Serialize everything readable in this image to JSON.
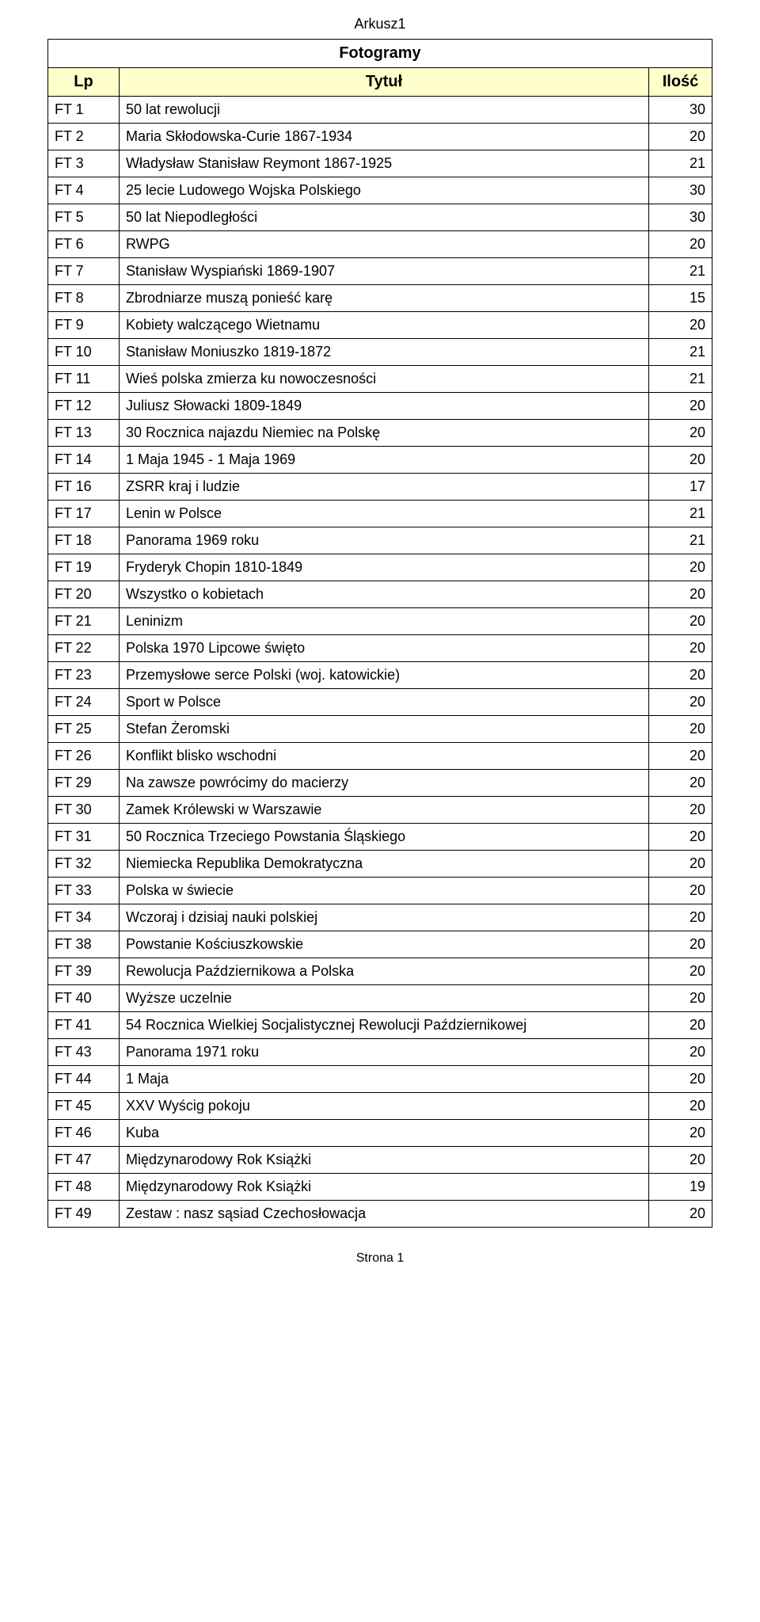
{
  "sheet_name": "Arkusz1",
  "section_title": "Fotogramy",
  "footer": "Strona 1",
  "columns": {
    "lp": "Lp",
    "title": "Tytuł",
    "qty": "Ilość"
  },
  "rows": [
    {
      "lp": "FT 1",
      "title": "50 lat rewolucji",
      "qty": "30"
    },
    {
      "lp": "FT 2",
      "title": "Maria Skłodowska-Curie 1867-1934",
      "qty": "20"
    },
    {
      "lp": "FT 3",
      "title": "Władysław Stanisław Reymont 1867-1925",
      "qty": "21"
    },
    {
      "lp": "FT 4",
      "title": "25 lecie Ludowego Wojska Polskiego",
      "qty": "30"
    },
    {
      "lp": "FT 5",
      "title": "50 lat Niepodległości",
      "qty": "30"
    },
    {
      "lp": "FT 6",
      "title": "RWPG",
      "qty": "20"
    },
    {
      "lp": "FT 7",
      "title": "Stanisław Wyspiański 1869-1907",
      "qty": "21"
    },
    {
      "lp": "FT 8",
      "title": "Zbrodniarze muszą ponieść karę",
      "qty": "15"
    },
    {
      "lp": "FT 9",
      "title": "Kobiety walczącego Wietnamu",
      "qty": "20"
    },
    {
      "lp": "FT 10",
      "title": "Stanisław Moniuszko 1819-1872",
      "qty": "21"
    },
    {
      "lp": "FT 11",
      "title": "Wieś polska zmierza ku nowoczesności",
      "qty": "21"
    },
    {
      "lp": "FT 12",
      "title": "Juliusz Słowacki 1809-1849",
      "qty": "20"
    },
    {
      "lp": "FT 13",
      "title": "30 Rocznica najazdu Niemiec na Polskę",
      "qty": "20"
    },
    {
      "lp": "FT 14",
      "title": "1 Maja 1945 - 1 Maja 1969",
      "qty": "20"
    },
    {
      "lp": "FT 16",
      "title": "ZSRR kraj i ludzie",
      "qty": "17"
    },
    {
      "lp": "FT 17",
      "title": "Lenin w Polsce",
      "qty": "21"
    },
    {
      "lp": "FT 18",
      "title": "Panorama 1969 roku",
      "qty": "21"
    },
    {
      "lp": "FT 19",
      "title": "Fryderyk Chopin 1810-1849",
      "qty": "20"
    },
    {
      "lp": "FT 20",
      "title": "Wszystko o kobietach",
      "qty": "20"
    },
    {
      "lp": "FT 21",
      "title": "Leninizm",
      "qty": "20"
    },
    {
      "lp": "FT 22",
      "title": "Polska 1970 Lipcowe święto",
      "qty": "20"
    },
    {
      "lp": "FT 23",
      "title": "Przemysłowe serce Polski (woj. katowickie)",
      "qty": "20"
    },
    {
      "lp": "FT 24",
      "title": "Sport w Polsce",
      "qty": "20"
    },
    {
      "lp": "FT 25",
      "title": "Stefan Żeromski",
      "qty": "20"
    },
    {
      "lp": "FT 26",
      "title": "Konflikt blisko wschodni",
      "qty": "20"
    },
    {
      "lp": "FT 29",
      "title": "Na zawsze powrócimy do macierzy",
      "qty": "20"
    },
    {
      "lp": "FT 30",
      "title": "Zamek Królewski w Warszawie",
      "qty": "20"
    },
    {
      "lp": "FT 31",
      "title": "50 Rocznica Trzeciego Powstania Śląskiego",
      "qty": "20"
    },
    {
      "lp": "FT 32",
      "title": "Niemiecka Republika Demokratyczna",
      "qty": "20"
    },
    {
      "lp": "FT 33",
      "title": "Polska w świecie",
      "qty": "20"
    },
    {
      "lp": "FT 34",
      "title": "Wczoraj i dzisiaj nauki polskiej",
      "qty": "20"
    },
    {
      "lp": "FT 38",
      "title": "Powstanie Kościuszkowskie",
      "qty": "20"
    },
    {
      "lp": "FT 39",
      "title": "Rewolucja Październikowa a Polska",
      "qty": "20"
    },
    {
      "lp": "FT 40",
      "title": "Wyższe uczelnie",
      "qty": "20"
    },
    {
      "lp": "FT 41",
      "title": "54 Rocznica Wielkiej Socjalistycznej Rewolucji Październikowej",
      "qty": "20"
    },
    {
      "lp": "FT 43",
      "title": "Panorama 1971 roku",
      "qty": "20"
    },
    {
      "lp": "FT 44",
      "title": "1 Maja",
      "qty": "20"
    },
    {
      "lp": "FT 45",
      "title": "XXV Wyścig pokoju",
      "qty": "20"
    },
    {
      "lp": "FT 46",
      "title": "Kuba",
      "qty": "20"
    },
    {
      "lp": "FT 47",
      "title": "Międzynarodowy Rok Książki",
      "qty": "20"
    },
    {
      "lp": "FT 48",
      "title": "Międzynarodowy Rok Książki",
      "qty": "19"
    },
    {
      "lp": "FT 49",
      "title": "Zestaw : nasz sąsiad Czechosłowacja",
      "qty": "20"
    }
  ]
}
